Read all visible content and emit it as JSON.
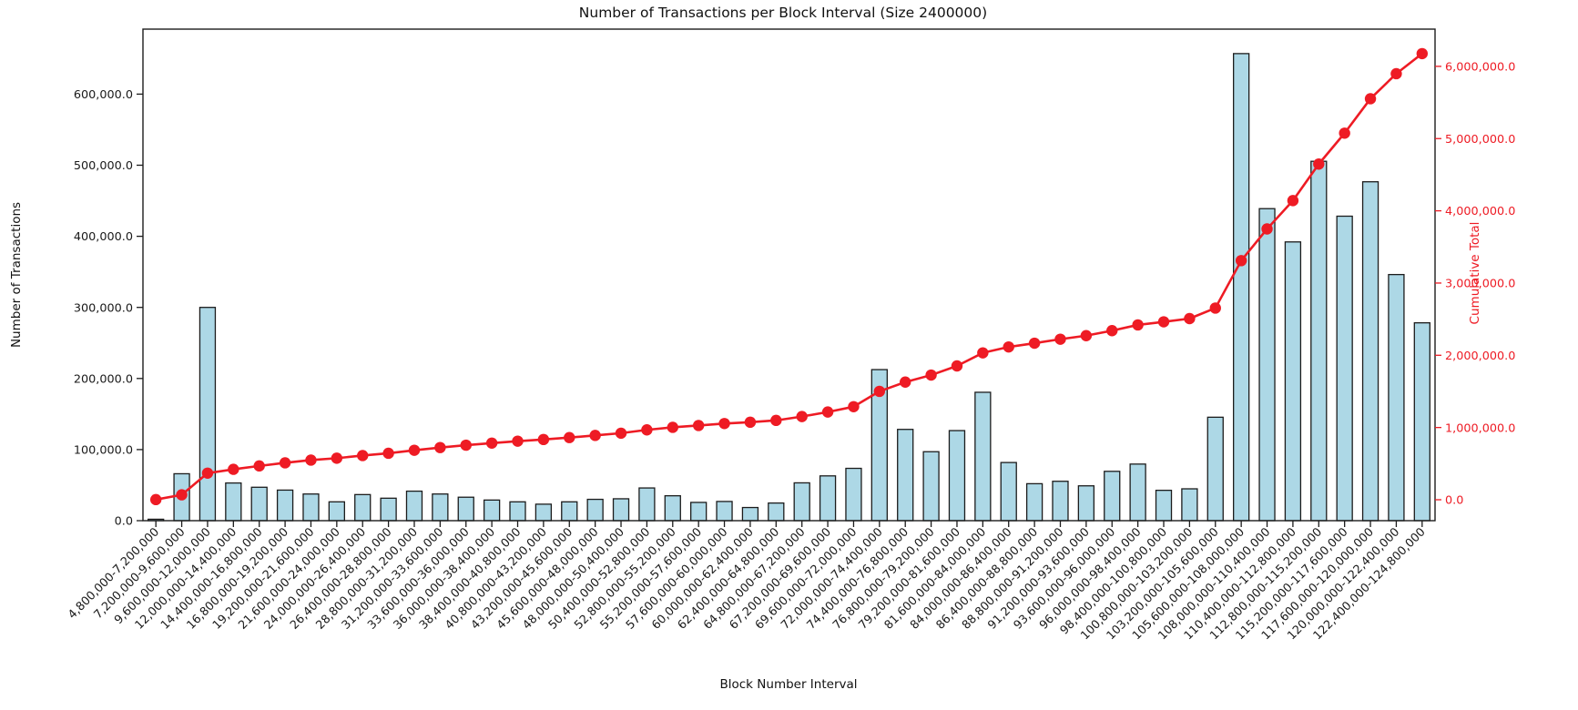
{
  "chart_data": {
    "type": "bar",
    "title": "Number of Transactions per Block Interval (Size 2400000)",
    "xlabel": "Block Number Interval",
    "ylabel_left": "Number of Transactions",
    "ylabel_right": "Cumulative Total",
    "grid": false,
    "legend": "none",
    "background": "#ffffff",
    "colors": {
      "bar_fill": "#add8e6",
      "bar_edge": "#1c1c1c",
      "line": "#ee1b24",
      "axis_text": "#1a1a1a",
      "spine": "#1c1c1c"
    },
    "categories": [
      "4,800,000-7,200,000",
      "7,200,000-9,600,000",
      "9,600,000-12,000,000",
      "12,000,000-14,400,000",
      "14,400,000-16,800,000",
      "16,800,000-19,200,000",
      "19,200,000-21,600,000",
      "21,600,000-24,000,000",
      "24,000,000-26,400,000",
      "26,400,000-28,800,000",
      "28,800,000-31,200,000",
      "31,200,000-33,600,000",
      "33,600,000-36,000,000",
      "36,000,000-38,400,000",
      "38,400,000-40,800,000",
      "40,800,000-43,200,000",
      "43,200,000-45,600,000",
      "45,600,000-48,000,000",
      "48,000,000-50,400,000",
      "50,400,000-52,800,000",
      "52,800,000-55,200,000",
      "55,200,000-57,600,000",
      "57,600,000-60,000,000",
      "60,000,000-62,400,000",
      "62,400,000-64,800,000",
      "64,800,000-67,200,000",
      "67,200,000-69,600,000",
      "69,600,000-72,000,000",
      "72,000,000-74,400,000",
      "74,400,000-76,800,000",
      "76,800,000-79,200,000",
      "79,200,000-81,600,000",
      "81,600,000-84,000,000",
      "84,000,000-86,400,000",
      "86,400,000-88,800,000",
      "88,800,000-91,200,000",
      "91,200,000-93,600,000",
      "93,600,000-96,000,000",
      "96,000,000-98,400,000",
      "98,400,000-100,800,000",
      "100,800,000-103,200,000",
      "103,200,000-105,600,000",
      "105,600,000-108,000,000",
      "108,000,000-110,400,000",
      "110,400,000-112,800,000",
      "112,800,000-115,200,000",
      "115,200,000-117,600,000",
      "117,600,000-120,000,000",
      "120,000,000-122,400,000",
      "122,400,000-124,800,000"
    ],
    "series": [
      {
        "name": "Number of Transactions",
        "type": "bar",
        "axis": "left",
        "values": [
          2000,
          66000,
          300000,
          53000,
          47000,
          43000,
          37500,
          26500,
          36700,
          31600,
          41500,
          37500,
          33000,
          29000,
          26500,
          23200,
          26500,
          30000,
          30800,
          46000,
          35000,
          25700,
          27000,
          18500,
          24800,
          53200,
          63000,
          73600,
          212500,
          128400,
          97000,
          126700,
          180600,
          81800,
          52000,
          55400,
          49000,
          69400,
          79600,
          42700,
          44800,
          145500,
          657000,
          438900,
          392100,
          505500,
          428300,
          476700,
          346200,
          278300
        ]
      },
      {
        "name": "Cumulative Total",
        "type": "line",
        "axis": "right",
        "marker": "circle",
        "values": [
          2000,
          68000,
          368000,
          421000,
          468000,
          511000,
          548500,
          575000,
          611700,
          643300,
          684800,
          722300,
          755300,
          784300,
          810800,
          834000,
          860500,
          890500,
          921300,
          967300,
          1002300,
          1028000,
          1055000,
          1073500,
          1098300,
          1151500,
          1214500,
          1288100,
          1500600,
          1629000,
          1726000,
          1852700,
          2033300,
          2115100,
          2167100,
          2222500,
          2271500,
          2340900,
          2420500,
          2463200,
          2508000,
          2653500,
          3310500,
          3749400,
          4141500,
          4647000,
          5075300,
          5552000,
          5898200,
          6176500
        ]
      }
    ],
    "left_axis": {
      "tick_values": [
        0,
        100000,
        200000,
        300000,
        400000,
        500000,
        600000
      ],
      "tick_labels": [
        "0.0",
        "100,000.0",
        "200,000.0",
        "300,000.0",
        "400,000.0",
        "500,000.0",
        "600,000.0"
      ],
      "range_top": 690000
    },
    "right_axis": {
      "tick_values": [
        0,
        1000000,
        2000000,
        3000000,
        4000000,
        5000000,
        6000000
      ],
      "tick_labels": [
        "0.0",
        "1,000,000.0",
        "2,000,000.0",
        "3,000,000.0",
        "4,000,000.0",
        "5,000,000.0",
        "6,000,000.0"
      ],
      "color": "#ee1b24"
    }
  }
}
